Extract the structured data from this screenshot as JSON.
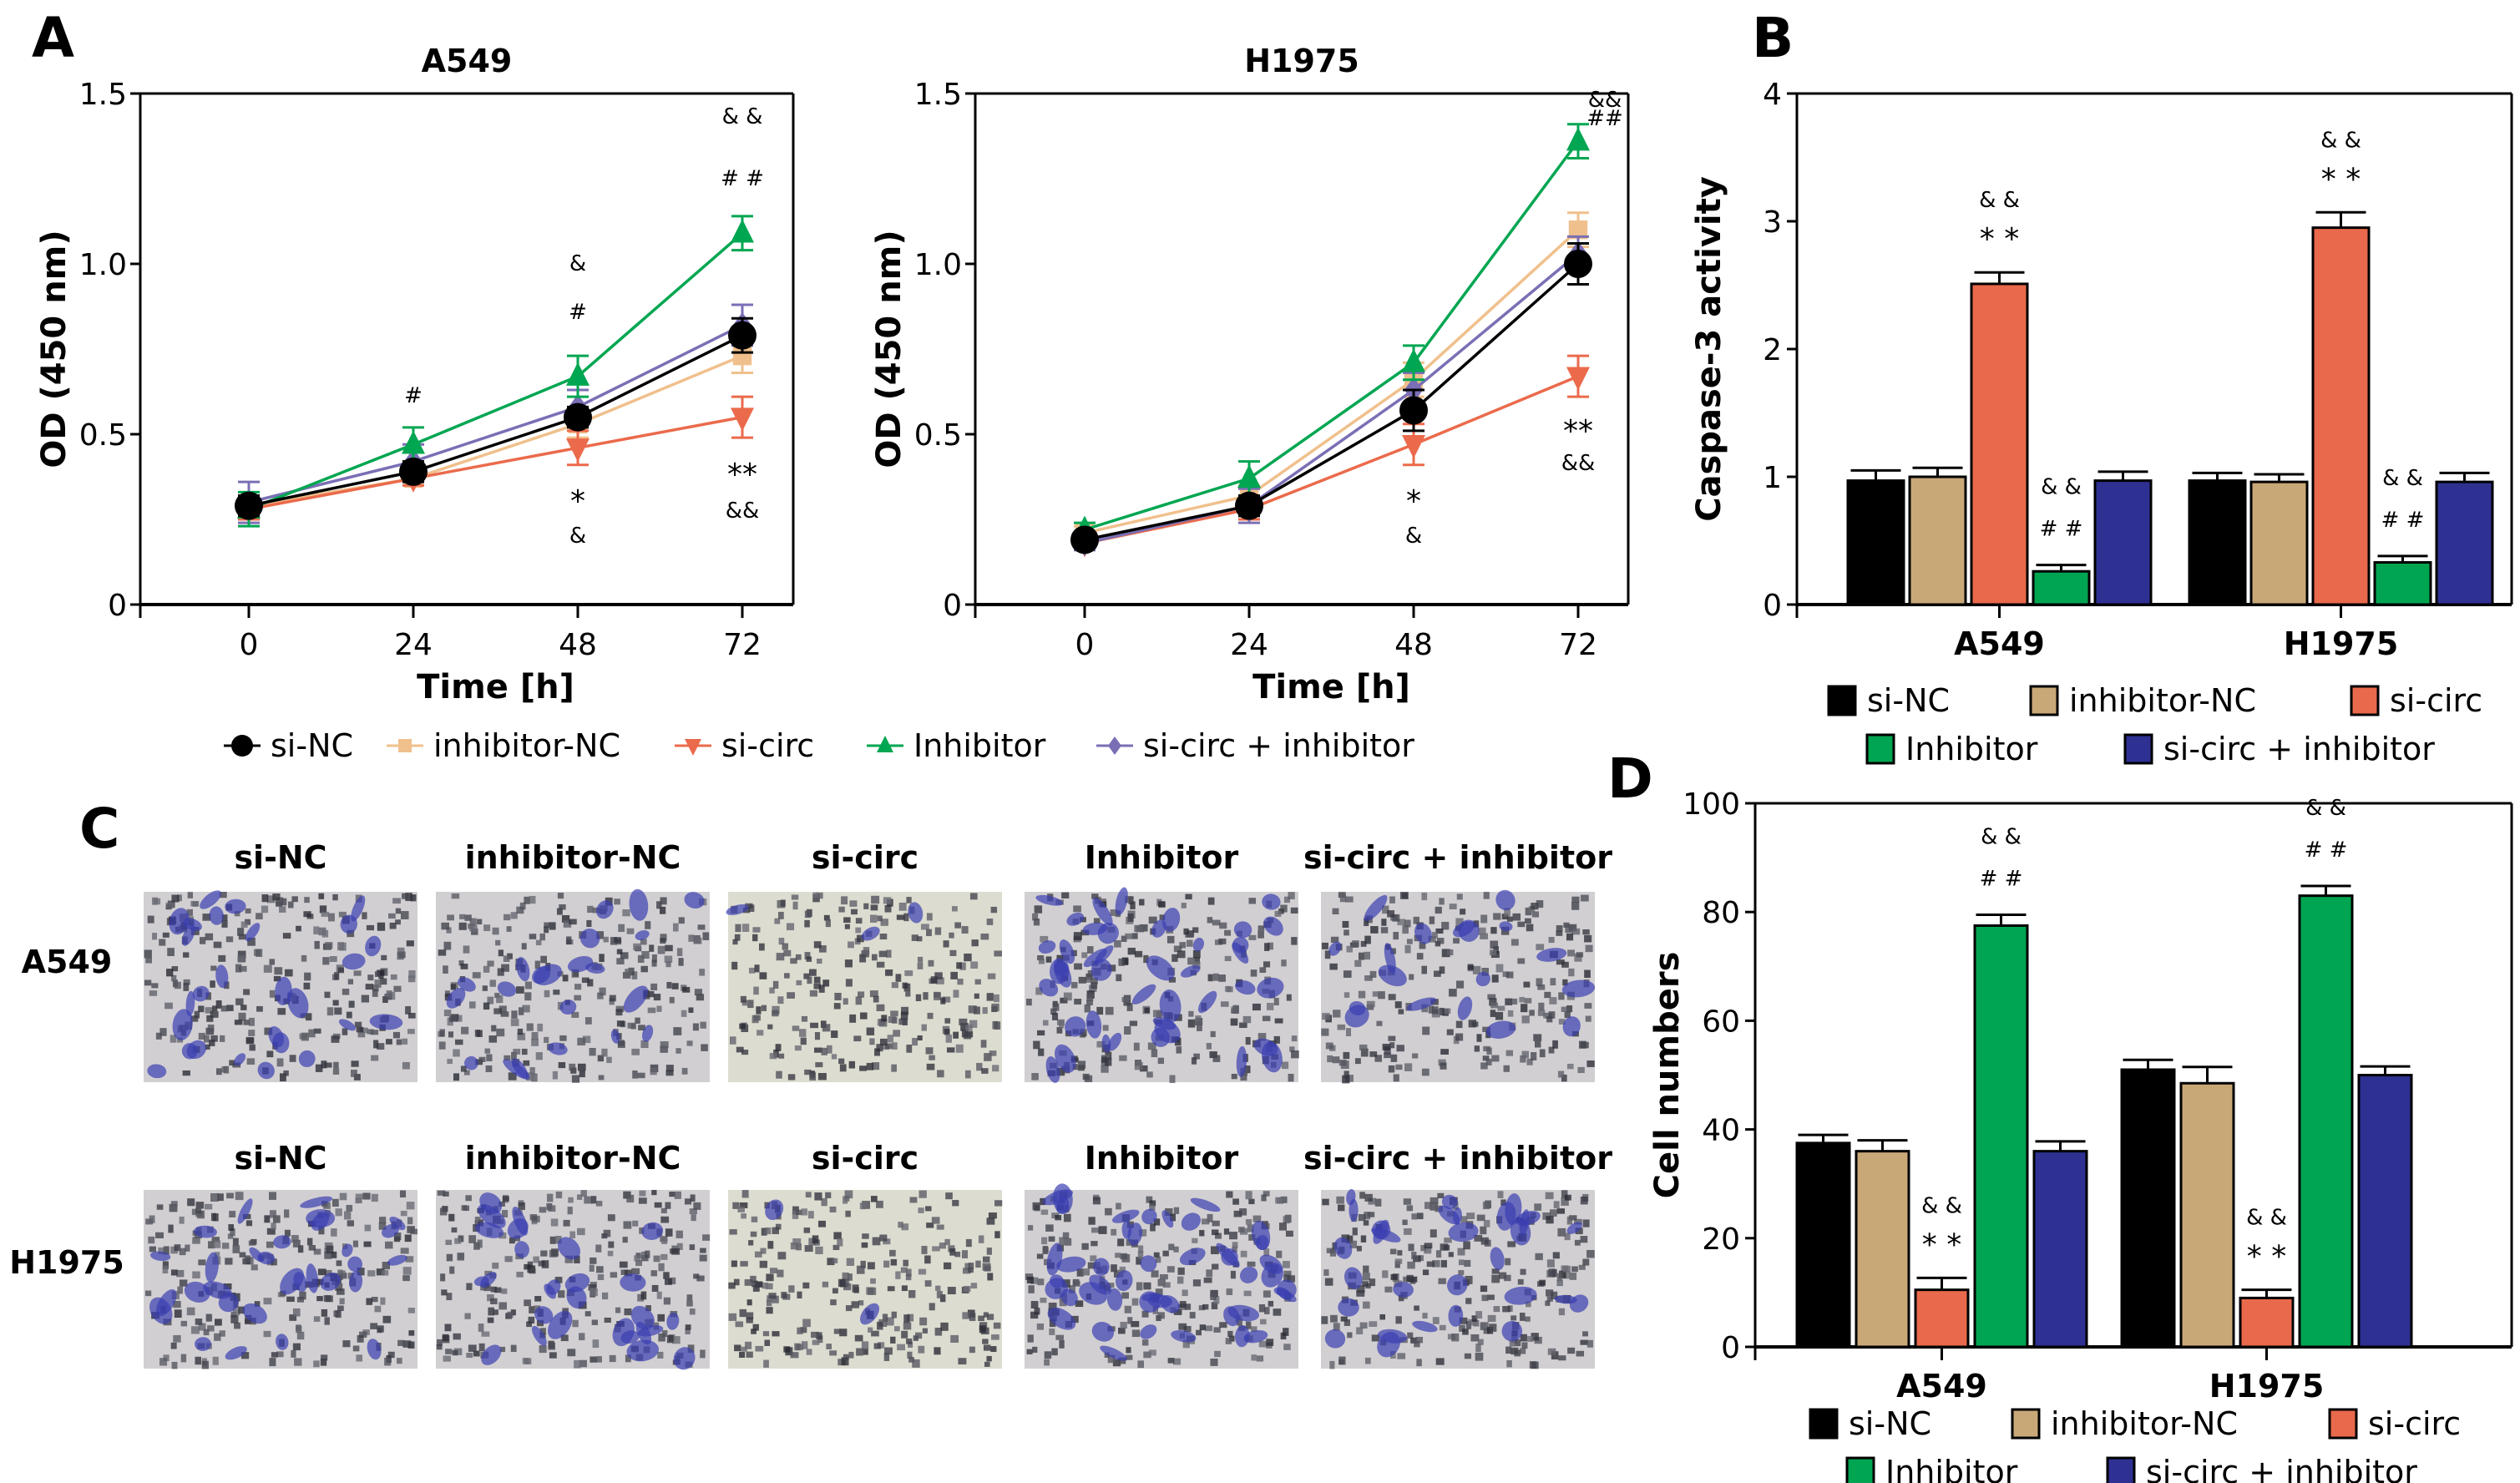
{
  "figure": {
    "panel_labels": [
      "A",
      "B",
      "C",
      "D"
    ],
    "colors": {
      "si-NC": "#000000",
      "inhibitor-NC": "#f0c08c",
      "si-circ": "#eb6a4b",
      "Inhibitor": "#00a651",
      "si-circ + inhibitor": "#7a6fb5"
    },
    "bar_colors": {
      "si-NC": "#000000",
      "inhibitor-NC": "#c9a878",
      "si-circ": "#e8694b",
      "Inhibitor": "#00a551",
      "si-circ + inhibitor": "#2e3192"
    }
  },
  "panel_c": {
    "row_labels": [
      "A549",
      "H1975"
    ],
    "column_labels_row1": [
      "si-NC",
      "inhibitor-NC",
      "si-circ",
      "Inhibitor",
      "si-circ + inhibitor"
    ],
    "column_labels_row2": [
      "si-NC",
      "inhibitor-NC",
      "si-circ",
      "Inhibitor",
      "si-circ + inhibitor"
    ],
    "relative_blue_density": [
      [
        0.45,
        0.35,
        0.05,
        0.7,
        0.3
      ],
      [
        0.5,
        0.45,
        0.03,
        0.75,
        0.5
      ]
    ]
  },
  "chart_data": [
    {
      "id": "A-A549",
      "type": "line",
      "title": "A549",
      "xlabel": "Time [h]",
      "ylabel": "OD (450 nm)",
      "x": [
        0,
        24,
        48,
        72
      ],
      "xticks": [
        "0",
        "24",
        "48",
        "72"
      ],
      "yticks": [
        "0",
        "0.5",
        "1.0",
        "1.5"
      ],
      "ylim": [
        0,
        1.5
      ],
      "legend_position": "bottom",
      "series": [
        {
          "name": "si-NC",
          "marker": "circle",
          "values": [
            0.29,
            0.39,
            0.55,
            0.79
          ],
          "errors": [
            0.03,
            0.03,
            0.03,
            0.05
          ]
        },
        {
          "name": "inhibitor-NC",
          "marker": "square",
          "values": [
            0.29,
            0.37,
            0.53,
            0.73
          ],
          "errors": [
            0.03,
            0.02,
            0.04,
            0.05
          ]
        },
        {
          "name": "si-circ",
          "marker": "triangle-down",
          "values": [
            0.28,
            0.37,
            0.46,
            0.55
          ],
          "errors": [
            0.03,
            0.02,
            0.05,
            0.06
          ]
        },
        {
          "name": "Inhibitor",
          "marker": "triangle-up",
          "values": [
            0.28,
            0.47,
            0.67,
            1.09
          ],
          "errors": [
            0.05,
            0.05,
            0.06,
            0.05
          ]
        },
        {
          "name": "si-circ + inhibitor",
          "marker": "diamond",
          "values": [
            0.3,
            0.42,
            0.58,
            0.82
          ],
          "errors": [
            0.06,
            0.05,
            0.05,
            0.06
          ]
        }
      ],
      "annotations": [
        {
          "x": 24,
          "text": "#",
          "position": "above"
        },
        {
          "x": 48,
          "text": "#",
          "position": "above"
        },
        {
          "x": 48,
          "text": "&",
          "position": "above-top"
        },
        {
          "x": 72,
          "text": "#   #",
          "position": "above"
        },
        {
          "x": 72,
          "text": "&   &",
          "position": "above-top"
        },
        {
          "x": 48,
          "text": "*",
          "position": "below"
        },
        {
          "x": 48,
          "text": "&",
          "position": "below-bottom"
        },
        {
          "x": 72,
          "text": "**",
          "position": "below"
        },
        {
          "x": 72,
          "text": "&&",
          "position": "below-bottom"
        }
      ]
    },
    {
      "id": "A-H1975",
      "type": "line",
      "title": "H1975",
      "xlabel": "Time [h]",
      "ylabel": "OD (450 nm)",
      "x": [
        0,
        24,
        48,
        72
      ],
      "xticks": [
        "0",
        "24",
        "48",
        "72"
      ],
      "yticks": [
        "0",
        "0.5",
        "1.0",
        "1.5"
      ],
      "ylim": [
        0,
        1.5
      ],
      "series": [
        {
          "name": "si-NC",
          "marker": "circle",
          "values": [
            0.19,
            0.29,
            0.57,
            1.0
          ],
          "errors": [
            0.02,
            0.03,
            0.06,
            0.06
          ]
        },
        {
          "name": "inhibitor-NC",
          "marker": "square",
          "values": [
            0.21,
            0.32,
            0.66,
            1.1
          ],
          "errors": [
            0.02,
            0.03,
            0.05,
            0.05
          ]
        },
        {
          "name": "si-circ",
          "marker": "triangle-down",
          "values": [
            0.18,
            0.28,
            0.47,
            0.67
          ],
          "errors": [
            0.02,
            0.03,
            0.06,
            0.06
          ]
        },
        {
          "name": "Inhibitor",
          "marker": "triangle-up",
          "values": [
            0.22,
            0.37,
            0.71,
            1.36
          ],
          "errors": [
            0.02,
            0.05,
            0.05,
            0.05
          ]
        },
        {
          "name": "si-circ + inhibitor",
          "marker": "diamond",
          "values": [
            0.18,
            0.29,
            0.63,
            1.03
          ],
          "errors": [
            0.02,
            0.05,
            0.05,
            0.05
          ]
        }
      ],
      "annotations": [
        {
          "x": 72,
          "text": "&&",
          "position": "above-top"
        },
        {
          "x": 72,
          "text": "##",
          "position": "above"
        },
        {
          "x": 48,
          "text": "*",
          "position": "below"
        },
        {
          "x": 48,
          "text": "&",
          "position": "below-bottom"
        },
        {
          "x": 72,
          "text": "**",
          "position": "below"
        },
        {
          "x": 72,
          "text": "&&",
          "position": "below-bottom"
        }
      ]
    },
    {
      "id": "B",
      "type": "bar",
      "title": "",
      "xlabel": "",
      "ylabel": "Caspase-3 activity",
      "categories": [
        "A549",
        "H1975"
      ],
      "yticks": [
        "0",
        "1",
        "2",
        "3",
        "4"
      ],
      "ylim": [
        0,
        4
      ],
      "legend_position": "bottom",
      "series": [
        {
          "name": "si-NC",
          "values": [
            0.97,
            0.97
          ],
          "errors": [
            0.08,
            0.06
          ]
        },
        {
          "name": "inhibitor-NC",
          "values": [
            1.0,
            0.96
          ],
          "errors": [
            0.07,
            0.06
          ]
        },
        {
          "name": "si-circ",
          "values": [
            2.51,
            2.95
          ],
          "errors": [
            0.09,
            0.12
          ]
        },
        {
          "name": "Inhibitor",
          "values": [
            0.26,
            0.33
          ],
          "errors": [
            0.05,
            0.05
          ]
        },
        {
          "name": "si-circ + inhibitor",
          "values": [
            0.97,
            0.96
          ],
          "errors": [
            0.07,
            0.07
          ]
        }
      ],
      "annotations": [
        {
          "category": "A549",
          "series": "si-circ",
          "lines": [
            "&&",
            "**"
          ]
        },
        {
          "category": "A549",
          "series": "Inhibitor",
          "lines": [
            "&&",
            "##"
          ]
        },
        {
          "category": "H1975",
          "series": "si-circ",
          "lines": [
            "&&",
            "**"
          ]
        },
        {
          "category": "H1975",
          "series": "Inhibitor",
          "lines": [
            "&&",
            "##"
          ]
        }
      ]
    },
    {
      "id": "D",
      "type": "bar",
      "title": "",
      "xlabel": "",
      "ylabel": "Cell numbers",
      "categories": [
        "A549",
        "H1975"
      ],
      "yticks": [
        "0",
        "20",
        "40",
        "60",
        "80",
        "100"
      ],
      "ylim": [
        0,
        100
      ],
      "legend_position": "bottom",
      "series": [
        {
          "name": "si-NC",
          "values": [
            37.5,
            51
          ],
          "errors": [
            1.5,
            1.8
          ]
        },
        {
          "name": "inhibitor-NC",
          "values": [
            36,
            48.5
          ],
          "errors": [
            2,
            3
          ]
        },
        {
          "name": "si-circ",
          "values": [
            10.5,
            9
          ],
          "errors": [
            2.2,
            1.5
          ]
        },
        {
          "name": "Inhibitor",
          "values": [
            77.5,
            83
          ],
          "errors": [
            2,
            1.8
          ]
        },
        {
          "name": "si-circ + inhibitor",
          "values": [
            36,
            50
          ],
          "errors": [
            1.8,
            1.6
          ]
        }
      ],
      "annotations": [
        {
          "category": "A549",
          "series": "si-circ",
          "lines": [
            "&&",
            "**"
          ]
        },
        {
          "category": "A549",
          "series": "Inhibitor",
          "lines": [
            "&&",
            "##"
          ]
        },
        {
          "category": "H1975",
          "series": "si-circ",
          "lines": [
            "&&",
            "**"
          ]
        },
        {
          "category": "H1975",
          "series": "Inhibitor",
          "lines": [
            "&&",
            "##"
          ]
        }
      ]
    }
  ],
  "line_legend": [
    "si-NC",
    "inhibitor-NC",
    "si-circ",
    "Inhibitor",
    "si-circ + inhibitor"
  ],
  "bar_legend": [
    "si-NC",
    "inhibitor-NC",
    "si-circ",
    "Inhibitor",
    "si-circ + inhibitor"
  ]
}
